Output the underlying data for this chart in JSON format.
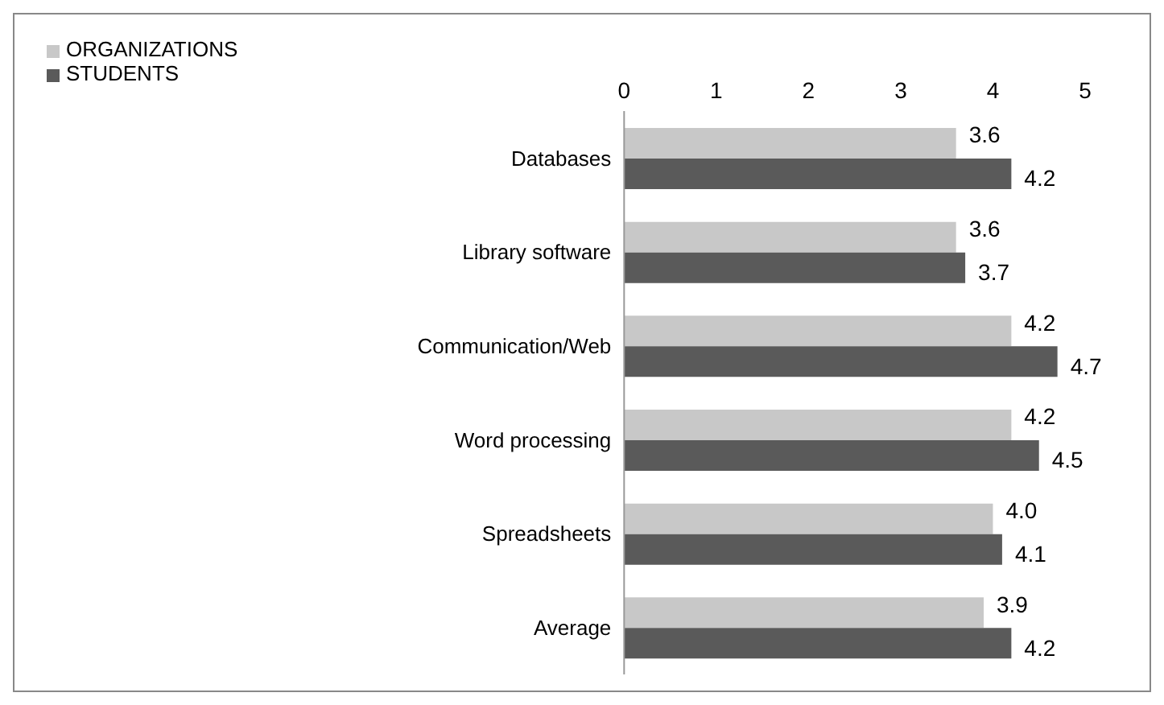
{
  "chart_data": {
    "type": "bar",
    "orientation": "horizontal",
    "categories": [
      "Databases",
      "Library software",
      "Communication/Web",
      "Word processing",
      "Spreadsheets",
      "Average"
    ],
    "series": [
      {
        "name": "ORGANIZATIONS",
        "color": "#c8c8c8",
        "values": [
          3.6,
          3.6,
          4.2,
          4.2,
          4.0,
          3.9
        ],
        "value_labels": [
          "3.6",
          "3.6",
          "4.2",
          "4.2",
          "4.0",
          "3.9"
        ]
      },
      {
        "name": "STUDENTS",
        "color": "#5a5a5a",
        "values": [
          4.2,
          3.7,
          4.7,
          4.5,
          4.1,
          4.2
        ],
        "value_labels": [
          "4.2",
          "3.7",
          "4.7",
          "4.5",
          "4.1",
          "4.2"
        ]
      }
    ],
    "xlim": [
      0,
      5
    ],
    "xticks": [
      0,
      1,
      2,
      3,
      4,
      5
    ],
    "legend": "top left"
  }
}
